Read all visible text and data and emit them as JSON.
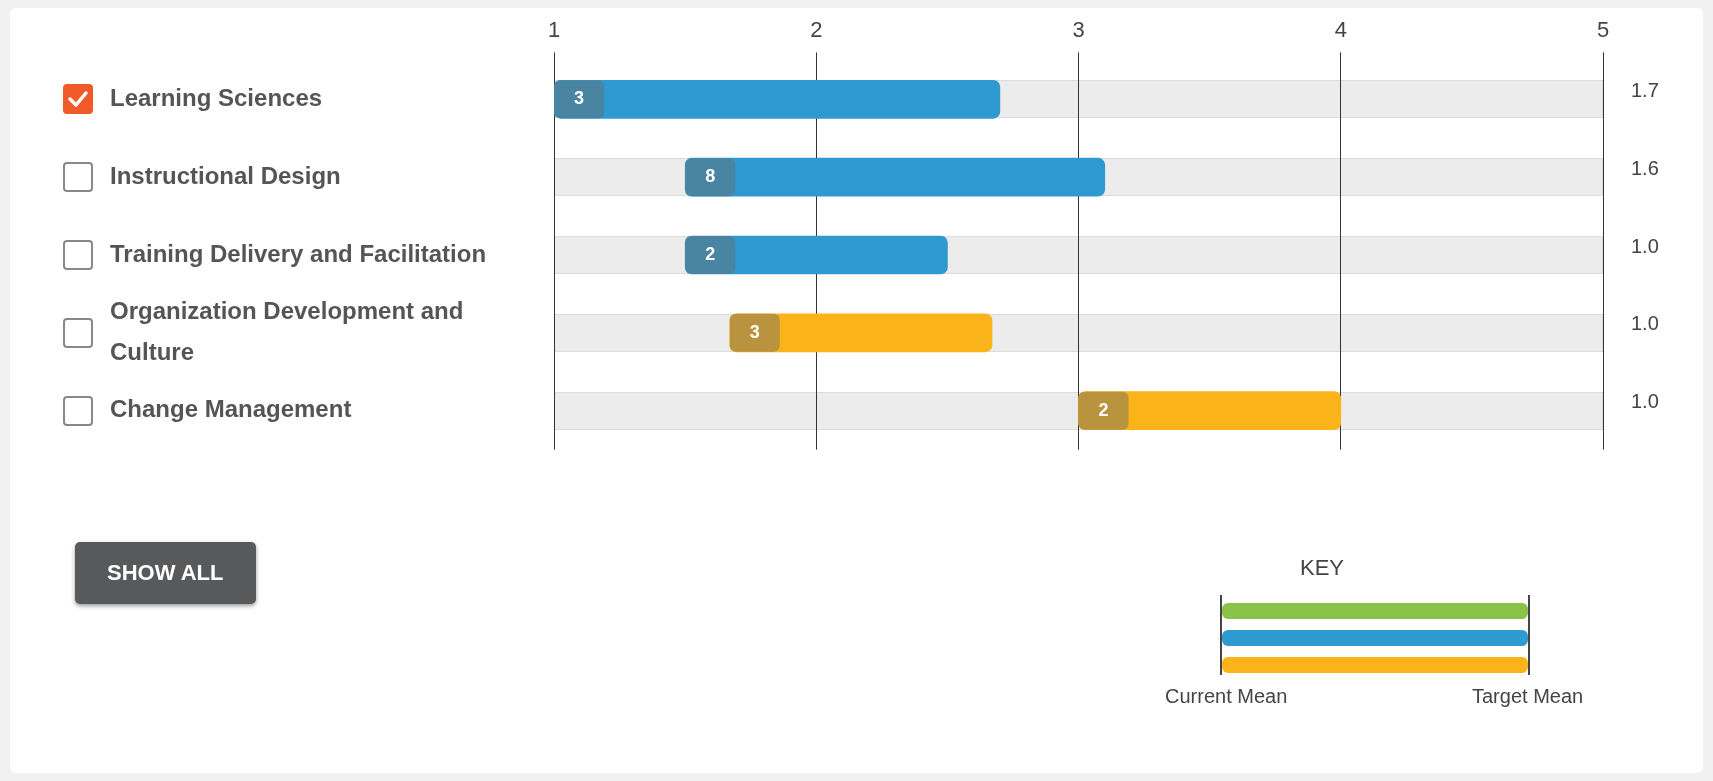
{
  "chart_data": {
    "type": "bar",
    "orientation": "horizontal",
    "categories": [
      "Learning Sciences",
      "Instructional Design",
      "Training Delivery and Facilitation",
      "Organization Development and Culture",
      "Change Management"
    ],
    "series": [
      {
        "colors": [
          "#2e9ad0",
          "#2e9ad0",
          "#2e9ad0",
          "#fab41a",
          "#fab41a"
        ],
        "values": [
          1.7,
          1.6,
          1.0,
          1.0,
          1.0
        ],
        "base": [
          1,
          1.5,
          1.5,
          1.67,
          3
        ]
      }
    ],
    "value_labels": [
      "1.7",
      "1.6",
      "1.0",
      "1.0",
      "1.0"
    ],
    "xlim": [
      1,
      5
    ],
    "xticks": [
      1,
      2,
      3,
      4,
      5
    ],
    "grid": "x",
    "legend": false,
    "annotations": [
      {
        "text": "3",
        "x": 1,
        "y": "Learning Sciences"
      },
      {
        "text": "8",
        "x": 1.5,
        "y": "Instructional Design"
      },
      {
        "text": "2",
        "x": 1.5,
        "y": "Training Delivery and Facilitation"
      },
      {
        "text": "3",
        "x": 1.67,
        "y": "Organization Development and Culture"
      },
      {
        "text": "2",
        "x": 3,
        "y": "Change Management"
      },
      "SHOW ALL",
      "KEY",
      "Current Mean",
      "Target Mean"
    ]
  }
}
